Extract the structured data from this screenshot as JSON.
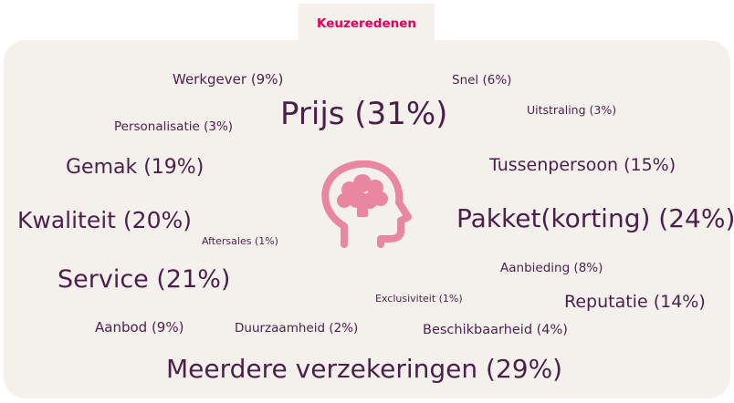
{
  "header": {
    "tab_label": "Keuzeredenen"
  },
  "colors": {
    "accent": "#e2005a",
    "text": "#4b1f4a",
    "icon": "#e8879f",
    "panel_bg": "#f4f1ec"
  },
  "icon": "head-brain-icon",
  "reasons": [
    {
      "id": "werkgever",
      "label": "Werkgever (9%)"
    },
    {
      "id": "snel",
      "label": "Snel (6%)"
    },
    {
      "id": "prijs",
      "label": "Prijs (31%)"
    },
    {
      "id": "uitstraling",
      "label": "Uitstraling (3%)"
    },
    {
      "id": "personalisatie",
      "label": "Personalisatie (3%)"
    },
    {
      "id": "gemak",
      "label": "Gemak (19%)"
    },
    {
      "id": "tussenpersoon",
      "label": "Tussenpersoon (15%)"
    },
    {
      "id": "kwaliteit",
      "label": "Kwaliteit (20%)"
    },
    {
      "id": "pakket",
      "label": "Pakket(korting) (24%)"
    },
    {
      "id": "aftersales",
      "label": "Aftersales (1%)"
    },
    {
      "id": "aanbieding",
      "label": "Aanbieding (8%)"
    },
    {
      "id": "service",
      "label": "Service (21%)"
    },
    {
      "id": "exclusiviteit",
      "label": "Exclusiviteit (1%)"
    },
    {
      "id": "reputatie",
      "label": "Reputatie (14%)"
    },
    {
      "id": "aanbod",
      "label": "Aanbod (9%)"
    },
    {
      "id": "duurzaamheid",
      "label": "Duurzaamheid (2%)"
    },
    {
      "id": "beschikbaarheid",
      "label": "Beschikbaarheid (4%)"
    },
    {
      "id": "meerdere",
      "label": "Meerdere verzekeringen (29%)"
    }
  ]
}
